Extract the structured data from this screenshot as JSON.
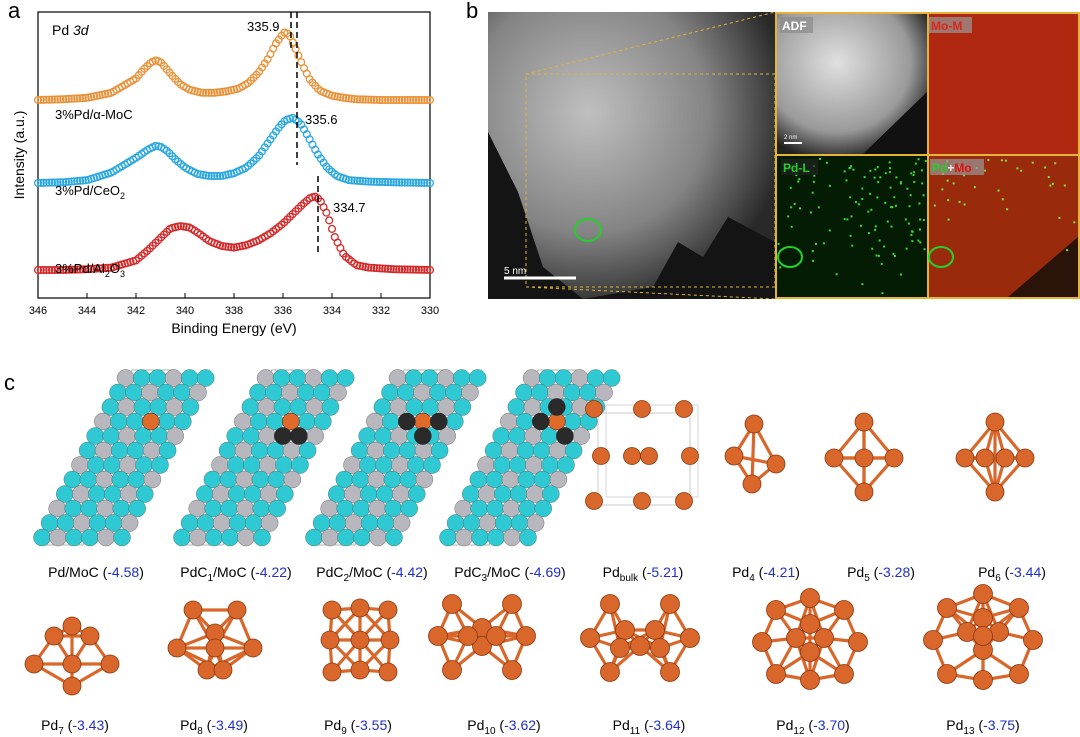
{
  "panels": {
    "a": "a",
    "b": "b",
    "c": "c"
  },
  "chart_data": {
    "type": "line",
    "title": "Pd 3d",
    "xlabel": "Binding Energy (eV)",
    "ylabel": "Intensity (a.u.)",
    "xlim": [
      346,
      330
    ],
    "x_ticks": [
      "346",
      "344",
      "342",
      "340",
      "338",
      "336",
      "334",
      "332",
      "330"
    ],
    "series": [
      {
        "name": "3%Pd/α-MoC",
        "color": "#e8923a",
        "x": [
          346,
          345,
          344,
          343,
          342,
          341.7,
          341.4,
          341.2,
          341.0,
          340.8,
          340.5,
          340.2,
          339.8,
          339.3,
          338.8,
          338.3,
          337.8,
          337.4,
          337.0,
          336.6,
          336.3,
          336.0,
          335.9,
          335.7,
          335.5,
          335.2,
          334.9,
          334.5,
          334.0,
          333.5,
          333.0,
          332.0,
          331.0,
          330.0
        ],
        "y": [
          0.0,
          0.01,
          0.03,
          0.1,
          0.3,
          0.42,
          0.52,
          0.55,
          0.53,
          0.45,
          0.33,
          0.22,
          0.14,
          0.1,
          0.1,
          0.12,
          0.16,
          0.24,
          0.38,
          0.58,
          0.78,
          0.92,
          0.95,
          0.88,
          0.72,
          0.48,
          0.28,
          0.13,
          0.06,
          0.03,
          0.01,
          0.0,
          0.0,
          0.0
        ]
      },
      {
        "name": "3%Pd/CeO₂",
        "color": "#2aa7e0",
        "x": [
          346,
          345,
          344,
          343,
          342,
          341.5,
          341.2,
          341.0,
          340.7,
          340.4,
          340.0,
          339.5,
          339.0,
          338.5,
          338.0,
          337.5,
          337.0,
          336.6,
          336.2,
          335.9,
          335.6,
          335.3,
          335.0,
          334.6,
          334.2,
          333.8,
          333.3,
          332.5,
          331.5,
          330.0
        ],
        "y": [
          0.0,
          0.01,
          0.04,
          0.15,
          0.36,
          0.48,
          0.53,
          0.52,
          0.45,
          0.34,
          0.22,
          0.13,
          0.1,
          0.1,
          0.14,
          0.22,
          0.38,
          0.58,
          0.78,
          0.9,
          0.93,
          0.86,
          0.68,
          0.42,
          0.22,
          0.1,
          0.04,
          0.02,
          0.01,
          0.0
        ]
      },
      {
        "name": "3%Pd/Al₂O₃",
        "color": "#d42a2a",
        "x": [
          346,
          345,
          344,
          343,
          342,
          341.5,
          341.0,
          340.6,
          340.2,
          339.8,
          339.4,
          339.0,
          338.5,
          338.0,
          337.5,
          337.0,
          336.5,
          336.0,
          335.6,
          335.2,
          334.9,
          334.7,
          334.5,
          334.2,
          333.9,
          333.5,
          333.0,
          332.5,
          331.5,
          330.0
        ],
        "y": [
          0.0,
          0.0,
          0.01,
          0.03,
          0.12,
          0.25,
          0.4,
          0.52,
          0.55,
          0.53,
          0.45,
          0.36,
          0.3,
          0.28,
          0.31,
          0.37,
          0.46,
          0.58,
          0.7,
          0.82,
          0.9,
          0.92,
          0.88,
          0.7,
          0.42,
          0.18,
          0.06,
          0.03,
          0.01,
          0.0
        ]
      }
    ],
    "annotations": [
      "335.9",
      "335.6",
      "334.7"
    ]
  },
  "stem": {
    "scale_main": "5 nm",
    "scale_inset": "2 nm",
    "maps": [
      "ADF",
      "Mo-M",
      "Pd-L",
      "Pd",
      "+",
      "Mo"
    ]
  },
  "row1": [
    {
      "base": "Pd/MoC (",
      "sub": "",
      "tail": "",
      "val": "-4.58"
    },
    {
      "base": "PdC",
      "sub": "1",
      "tail": "/MoC (",
      "val": "-4.22"
    },
    {
      "base": "PdC",
      "sub": "2",
      "tail": "/MoC (",
      "val": "-4.42"
    },
    {
      "base": "PdC",
      "sub": "3",
      "tail": "/MoC (",
      "val": "-4.69"
    },
    {
      "base": "Pd",
      "sub": "bulk",
      "tail": " (",
      "val": "-5.21"
    },
    {
      "base": "Pd",
      "sub": "4",
      "tail": " (",
      "val": "-4.21"
    },
    {
      "base": "Pd",
      "sub": "5",
      "tail": " (",
      "val": "-3.28"
    },
    {
      "base": "Pd",
      "sub": "6",
      "tail": " (",
      "val": "-3.44"
    }
  ],
  "row2": [
    {
      "base": "Pd",
      "sub": "7",
      "tail": " (",
      "val": "-3.43"
    },
    {
      "base": "Pd",
      "sub": "8",
      "tail": " (",
      "val": "-3.49"
    },
    {
      "base": "Pd",
      "sub": "9",
      "tail": " (",
      "val": "-3.55"
    },
    {
      "base": "Pd",
      "sub": "10",
      "tail": " (",
      "val": "-3.62"
    },
    {
      "base": "Pd",
      "sub": "11",
      "tail": " (",
      "val": "-3.64"
    },
    {
      "base": "Pd",
      "sub": "12",
      "tail": " (",
      "val": "-3.70"
    },
    {
      "base": "Pd",
      "sub": "13",
      "tail": " (",
      "val": "-3.75"
    }
  ],
  "close_paren": ")"
}
